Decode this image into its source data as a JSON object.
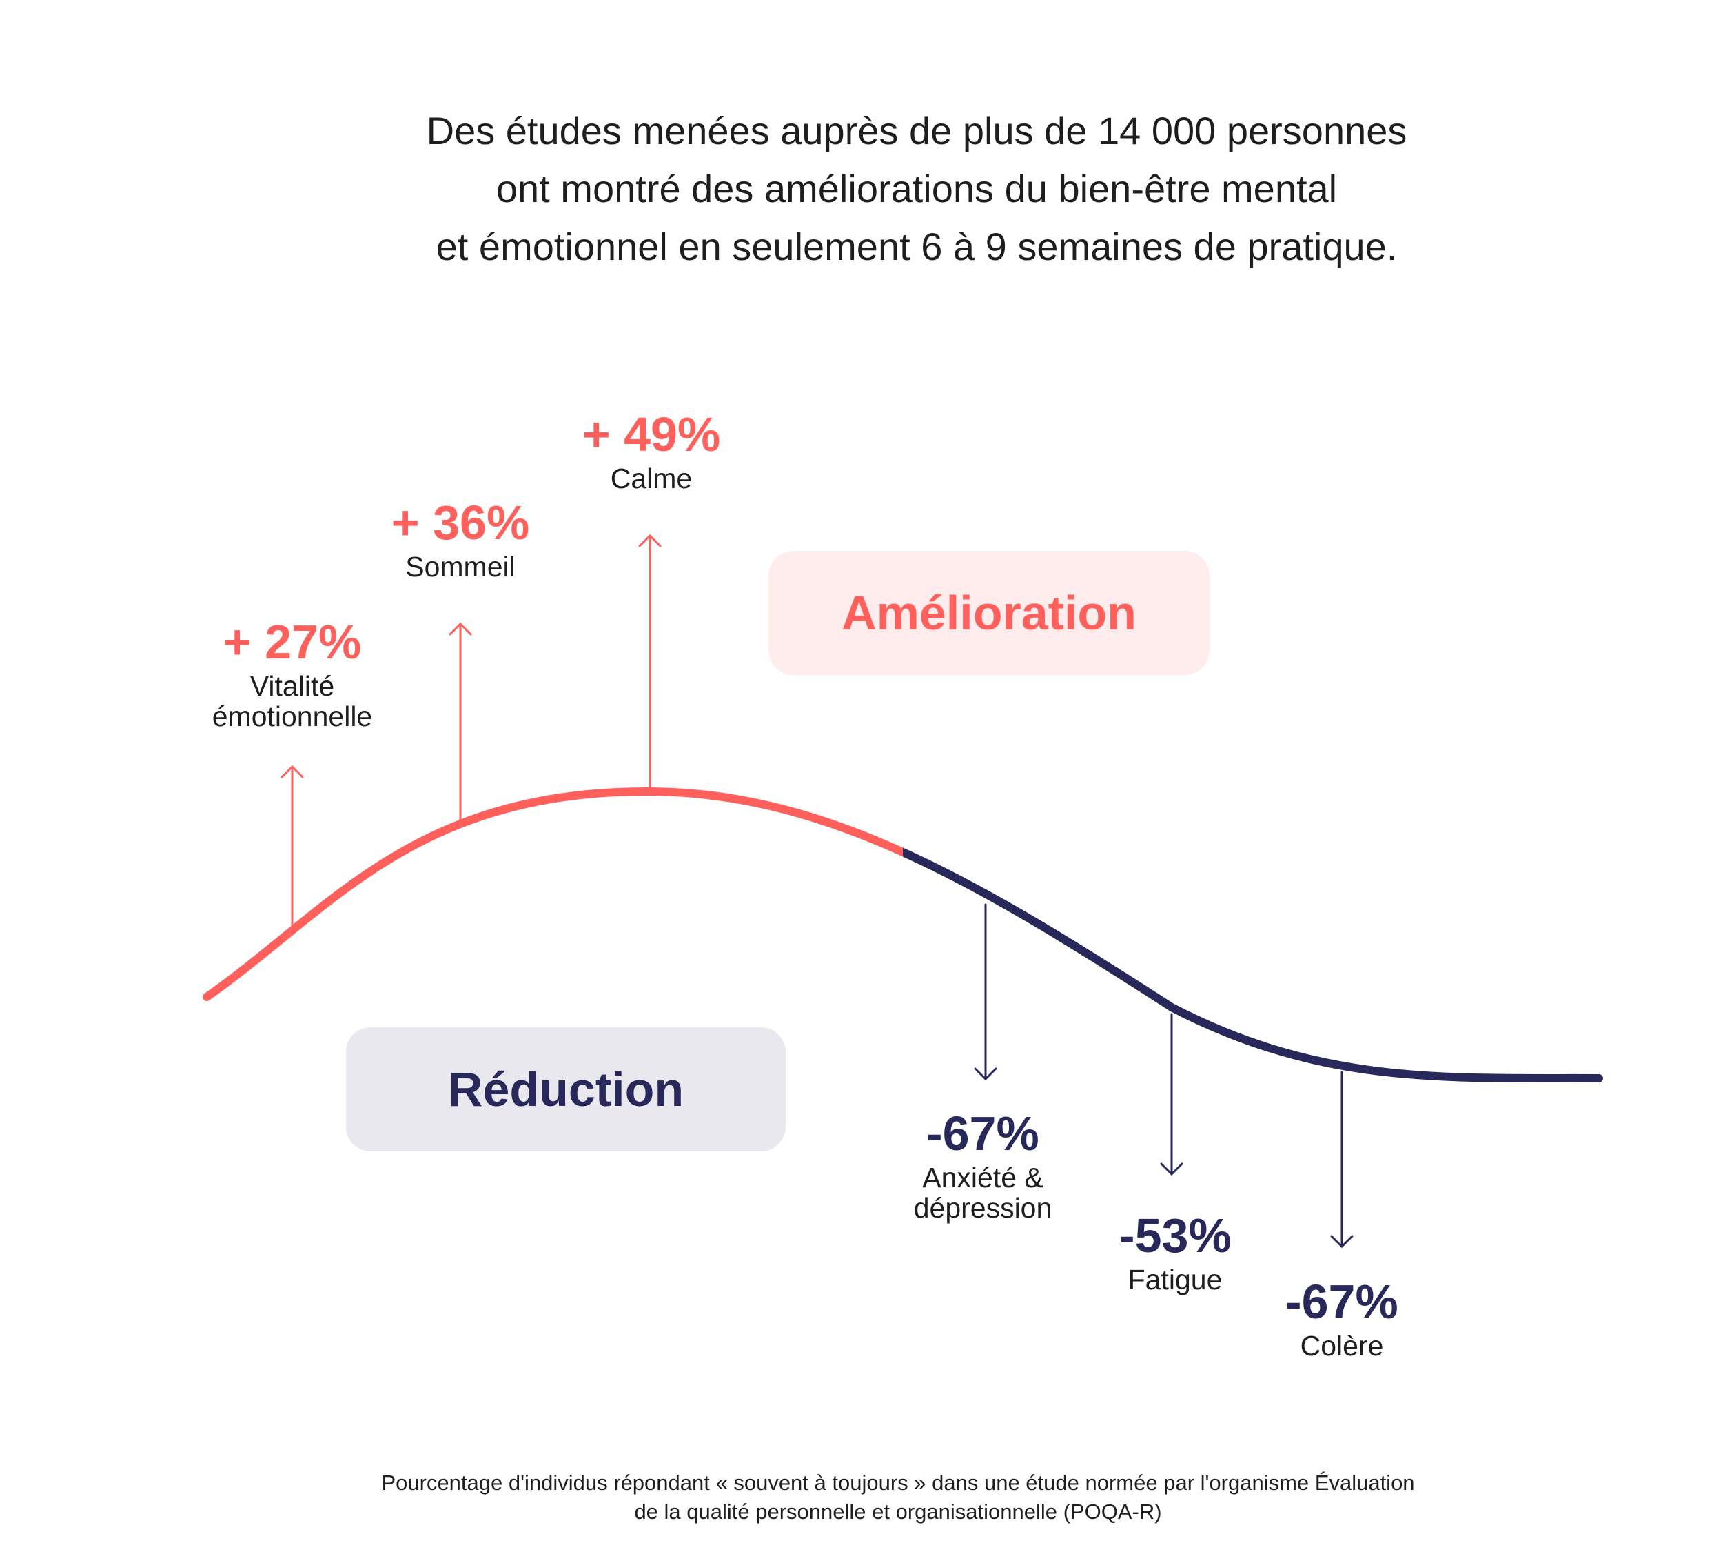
{
  "headline": {
    "lines": [
      "Des études menées auprès de plus de 14 000 personnes",
      "ont montré des améliorations du bien-être mental",
      "et émotionnel en seulement 6 à 9 semaines de pratique."
    ]
  },
  "labels": {
    "improvement": "Amélioration",
    "reduction": "Réduction"
  },
  "colors": {
    "improvement": "#ff605c",
    "improvement_bg": "#ffeded",
    "reduction": "#28285a",
    "reduction_bg": "#e9e8ef"
  },
  "chart_data": {
    "type": "annotated-curve",
    "improvements": [
      {
        "value": "+ 27%",
        "number": 27,
        "label": [
          "Vitalité",
          "émotionnelle"
        ]
      },
      {
        "value": "+ 36%",
        "number": 36,
        "label": [
          "Sommeil"
        ]
      },
      {
        "value": "+ 49%",
        "number": 49,
        "label": [
          "Calme"
        ]
      }
    ],
    "reductions": [
      {
        "value": "-67%",
        "number": -67,
        "label": [
          "Anxiété &",
          "dépression"
        ]
      },
      {
        "value": "-53%",
        "number": -53,
        "label": [
          "Fatigue"
        ]
      },
      {
        "value": "-67%",
        "number": -67,
        "label": [
          "Colère"
        ]
      }
    ]
  },
  "footnote": {
    "lines": [
      "Pourcentage d'individus répondant « souvent à toujours » dans une étude normée par l'organisme Évaluation",
      "de la qualité personnelle et organisationnelle (POQA-R)"
    ]
  }
}
